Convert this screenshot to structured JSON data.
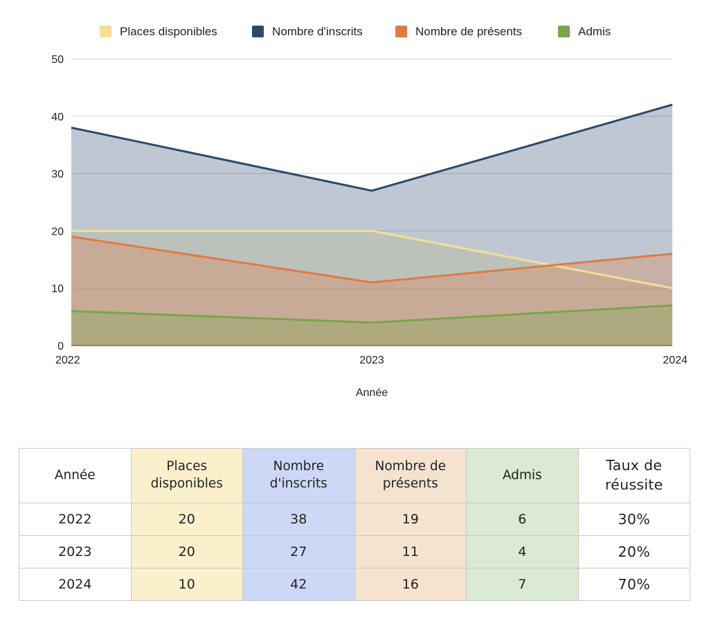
{
  "chart_data": {
    "type": "area",
    "title": "",
    "xlabel": "Année",
    "ylabel": "",
    "x": [
      "2022",
      "2023",
      "2024"
    ],
    "ylim": [
      0,
      50
    ],
    "yticks": [
      "0",
      "10",
      "20",
      "30",
      "40",
      "50"
    ],
    "grid": true,
    "legend_position": "top",
    "series": [
      {
        "name": "Places disponibles",
        "values": [
          20,
          20,
          10
        ],
        "color": "#f4df94"
      },
      {
        "name": "Nombre d'inscrits",
        "values": [
          38,
          27,
          42
        ],
        "color": "#2b4a6b"
      },
      {
        "name": "Nombre de présents",
        "values": [
          19,
          11,
          16
        ],
        "color": "#e07a43"
      },
      {
        "name": "Admis",
        "values": [
          6,
          4,
          7
        ],
        "color": "#77a54e"
      }
    ]
  },
  "table": {
    "headers": [
      [
        "Année"
      ],
      [
        "Places",
        "disponibles"
      ],
      [
        "Nombre",
        "d'inscrits"
      ],
      [
        "Nombre de",
        "présents"
      ],
      [
        "Admis"
      ],
      [
        "Taux de",
        "réussite"
      ]
    ],
    "column_colors": [
      "#ffffff",
      "#fcf0cc",
      "#ccd8f6",
      "#f5e3d0",
      "#dbead3",
      "#ffffff"
    ],
    "rows": [
      [
        "2022",
        "20",
        "38",
        "19",
        "6",
        "30%"
      ],
      [
        "2023",
        "20",
        "27",
        "11",
        "4",
        "20%"
      ],
      [
        "2024",
        "10",
        "42",
        "16",
        "7",
        "70%"
      ]
    ]
  }
}
